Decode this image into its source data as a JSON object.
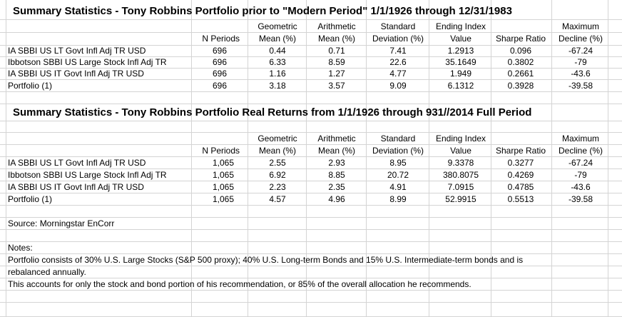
{
  "table1": {
    "title": "Summary Statistics - Tony Robbins Portfolio prior to \"Modern Period\"   1/1/1926 through 12/31/1983",
    "headers_top": [
      "",
      "",
      "Geometric",
      "Arithmetic",
      "Standard",
      "Ending Index",
      "",
      "Maximum"
    ],
    "headers_bottom": [
      "",
      "N Periods",
      "Mean (%)",
      "Mean (%)",
      "Deviation (%)",
      "Value",
      "Sharpe Ratio",
      "Decline (%)"
    ],
    "rows": [
      [
        "IA SBBI US LT Govt Infl Adj TR USD",
        "696",
        "0.44",
        "0.71",
        "7.41",
        "1.2913",
        "0.096",
        "-67.24"
      ],
      [
        "Ibbotson SBBI US Large Stock Infl Adj TR",
        "696",
        "6.33",
        "8.59",
        "22.6",
        "35.1649",
        "0.3802",
        "-79"
      ],
      [
        "IA SBBI US IT Govt Infl Adj TR USD",
        "696",
        "1.16",
        "1.27",
        "4.77",
        "1.949",
        "0.2661",
        "-43.6"
      ],
      [
        "Portfolio (1)",
        "696",
        "3.18",
        "3.57",
        "9.09",
        "6.1312",
        "0.3928",
        "-39.58"
      ]
    ]
  },
  "table2": {
    "title": "Summary Statistics - Tony Robbins Portfolio Real Returns from   1/1/1926 through 931//2014 Full Period",
    "headers_top": [
      "",
      "",
      "Geometric",
      "Arithmetic",
      "Standard",
      "Ending Index",
      "",
      "Maximum"
    ],
    "headers_bottom": [
      "",
      "N Periods",
      "Mean (%)",
      "Mean (%)",
      "Deviation (%)",
      "Value",
      "Sharpe Ratio",
      "Decline (%)"
    ],
    "rows": [
      [
        "IA SBBI US LT Govt Infl Adj TR USD",
        "1,065",
        "2.55",
        "2.93",
        "8.95",
        "9.3378",
        "0.3277",
        "-67.24"
      ],
      [
        "Ibbotson SBBI US Large Stock Infl Adj TR",
        "1,065",
        "6.92",
        "8.85",
        "20.72",
        "380.8075",
        "0.4269",
        "-79"
      ],
      [
        "IA SBBI US IT Govt Infl Adj TR USD",
        "1,065",
        "2.23",
        "2.35",
        "4.91",
        "7.0915",
        "0.4785",
        "-43.6"
      ],
      [
        "Portfolio (1)",
        "1,065",
        "4.57",
        "4.96",
        "8.99",
        "52.9915",
        "0.5513",
        "-39.58"
      ]
    ]
  },
  "source": "Source: Morningstar EnCorr",
  "notes": {
    "heading": "Notes:",
    "line1": "Portfolio consists of 30% U.S. Large Stocks (S&P 500 proxy); 40% U.S. Long-term Bonds and 15% U.S. Intermediate-term bonds and is",
    "line2": "rebalanced annually.",
    "line3": "This accounts for only the stock and bond portion of his recommendation, or 85% of the overall allocation he recommends."
  }
}
